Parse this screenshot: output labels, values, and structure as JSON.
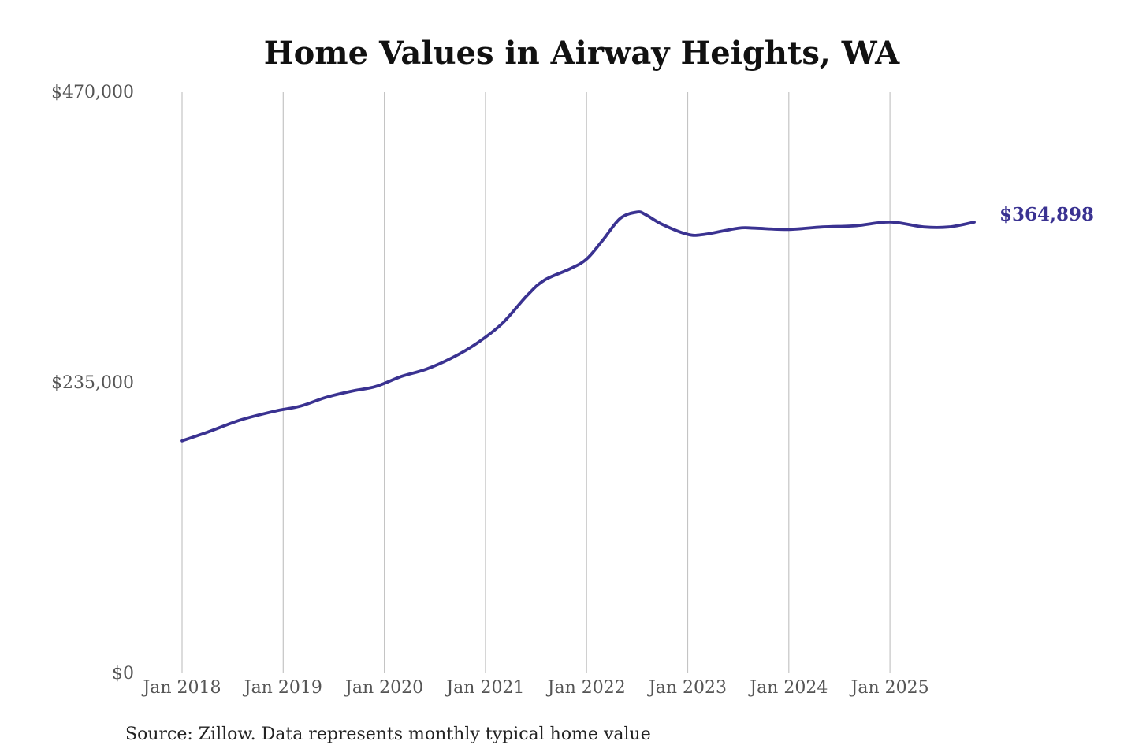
{
  "chart_data": {
    "type": "line",
    "title": "Home Values in Airway Heights, WA",
    "source": "Source: Zillow. Data represents monthly typical home value",
    "ylim": [
      0,
      470000
    ],
    "y_ticks": [
      {
        "value": 0,
        "label": "$0"
      },
      {
        "value": 235000,
        "label": "$235,000"
      },
      {
        "value": 470000,
        "label": "$470,000"
      }
    ],
    "x_ticks": [
      {
        "value": "2018-01",
        "label": "Jan 2018"
      },
      {
        "value": "2019-01",
        "label": "Jan 2019"
      },
      {
        "value": "2020-01",
        "label": "Jan 2020"
      },
      {
        "value": "2021-01",
        "label": "Jan 2021"
      },
      {
        "value": "2022-01",
        "label": "Jan 2022"
      },
      {
        "value": "2023-01",
        "label": "Jan 2023"
      },
      {
        "value": "2024-01",
        "label": "Jan 2024"
      },
      {
        "value": "2025-01",
        "label": "Jan 2025"
      }
    ],
    "grid": {
      "vertical": true,
      "horizontal": false
    },
    "colors": {
      "line": "#3a3291",
      "grid": "#c4c4c4"
    },
    "end_label": "$364,898",
    "series": [
      {
        "x": [
          "2018-01",
          "2018-04",
          "2018-08",
          "2018-12",
          "2019-03",
          "2019-06",
          "2019-09",
          "2019-12",
          "2020-03",
          "2020-06",
          "2020-09",
          "2020-12",
          "2021-03",
          "2021-06",
          "2021-08",
          "2021-11",
          "2022-01",
          "2022-03",
          "2022-05",
          "2022-07",
          "2022-08",
          "2022-10",
          "2023-01",
          "2023-03",
          "2023-07",
          "2023-09",
          "2024-01",
          "2024-05",
          "2024-09",
          "2025-01",
          "2025-05",
          "2025-08",
          "2025-11"
        ],
        "values": [
          188000,
          195000,
          205000,
          212000,
          216000,
          223000,
          228000,
          232000,
          240000,
          246000,
          255000,
          267000,
          283000,
          306000,
          318000,
          327000,
          335000,
          351000,
          368000,
          373000,
          371000,
          363000,
          355000,
          355000,
          360000,
          360000,
          359000,
          361000,
          362000,
          365000,
          361000,
          361000,
          364898
        ]
      }
    ]
  }
}
